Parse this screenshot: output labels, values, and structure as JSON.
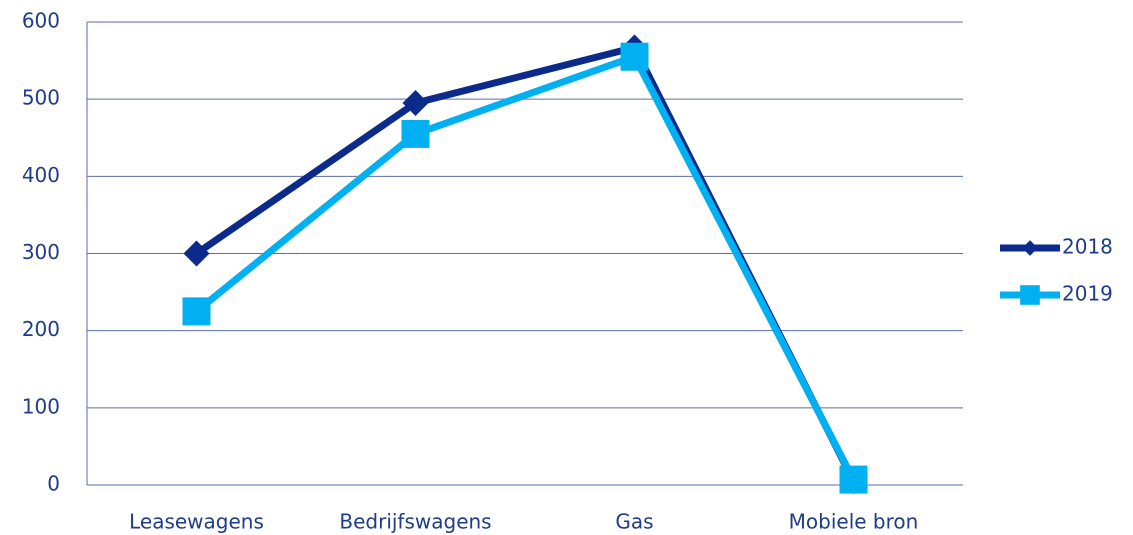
{
  "chart_data": {
    "type": "line",
    "categories": [
      "Leasewagens",
      "Bedrijfswagens",
      "Gas",
      "Mobiele bron"
    ],
    "series": [
      {
        "name": "2018",
        "color": "#0b2a8a",
        "marker": "diamond",
        "values": [
          300,
          495,
          567,
          5
        ]
      },
      {
        "name": "2019",
        "color": "#00b0f0",
        "marker": "square",
        "values": [
          225,
          455,
          555,
          7
        ]
      }
    ],
    "ylim": [
      0,
      600
    ],
    "yticks": [
      0,
      100,
      200,
      300,
      400,
      500,
      600
    ],
    "grid": true,
    "legend": "right"
  }
}
